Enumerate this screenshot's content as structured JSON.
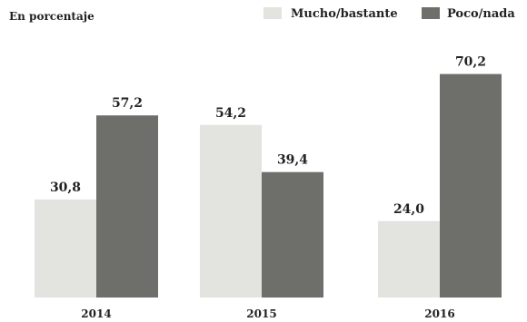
{
  "chart_data": {
    "type": "bar",
    "ylabel": "En porcentaje",
    "categories": [
      "2014",
      "2015",
      "2016"
    ],
    "series": [
      {
        "name": "Mucho/bastante",
        "values": [
          30.8,
          54.2,
          24.0
        ],
        "labels": [
          "30,8",
          "54,2",
          "24,0"
        ],
        "color": "#e3e3e0"
      },
      {
        "name": "Poco/nada",
        "values": [
          57.2,
          39.4,
          70.2
        ],
        "labels": [
          "57,2",
          "39,4",
          "70,2"
        ],
        "color": "#6e6e6b"
      }
    ],
    "ylim": [
      0,
      75
    ],
    "grid": false,
    "legend": "top-right"
  }
}
